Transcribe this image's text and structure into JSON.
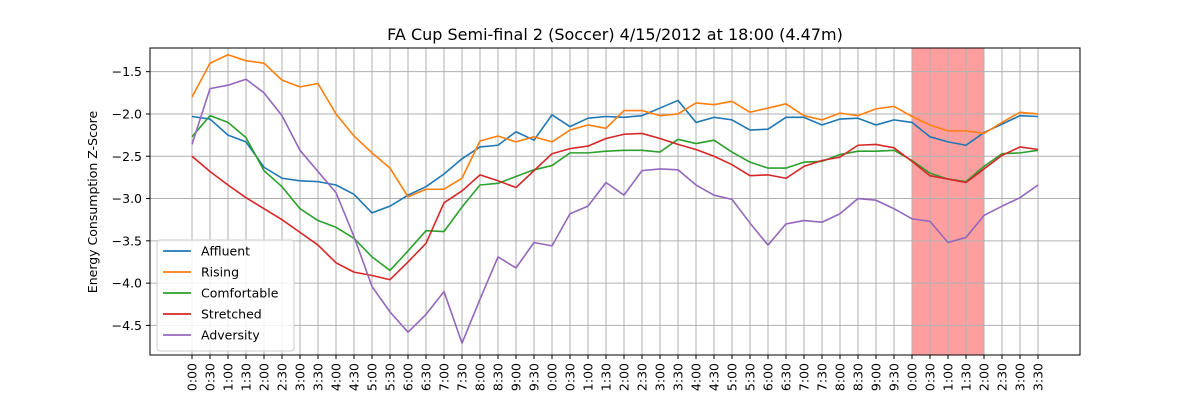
{
  "chart_data": {
    "type": "line",
    "title": "FA Cup Semi-final 2 (Soccer) 4/15/2012 at 18:00 (4.47m)",
    "xlabel": "",
    "ylabel": "Energy Consumption Z-Score",
    "ylim": [
      -4.85,
      -1.22
    ],
    "yticks": [
      -1.5,
      -2.0,
      -2.5,
      -3.0,
      -3.5,
      -4.0,
      -4.5
    ],
    "ytick_labels": [
      "−1.5",
      "−2.0",
      "−2.5",
      "−3.0",
      "−3.5",
      "−4.0",
      "−4.5"
    ],
    "grid": true,
    "legend_placement": "lower-left",
    "highlight": {
      "from_index": 40,
      "to_index": 44,
      "color": "#ff9e9e"
    },
    "x": [
      "0:00",
      "0:30",
      "1:00",
      "1:30",
      "2:00",
      "2:30",
      "3:00",
      "3:30",
      "4:00",
      "4:30",
      "5:00",
      "5:30",
      "6:00",
      "6:30",
      "7:00",
      "7:30",
      "8:00",
      "8:30",
      "9:00",
      "9:30",
      "0:00",
      "0:30",
      "1:00",
      "1:30",
      "2:00",
      "2:30",
      "3:00",
      "3:30",
      "4:00",
      "4:30",
      "5:00",
      "5:30",
      "6:00",
      "6:30",
      "7:00",
      "7:30",
      "8:00",
      "8:30",
      "9:00",
      "9:30",
      "0:00",
      "0:30",
      "1:00",
      "1:30",
      "2:00",
      "2:30",
      "3:00",
      "3:30"
    ],
    "series": [
      {
        "name": "Affluent",
        "color": "#1f77b4",
        "values": [
          -2.03,
          -2.06,
          -2.25,
          -2.33,
          -2.63,
          -2.76,
          -2.79,
          -2.8,
          -2.84,
          -2.95,
          -3.17,
          -3.09,
          -2.96,
          -2.86,
          -2.71,
          -2.53,
          -2.39,
          -2.37,
          -2.21,
          -2.31,
          -2.01,
          -2.15,
          -2.05,
          -2.03,
          -2.04,
          -2.02,
          -1.93,
          -1.84,
          -2.1,
          -2.04,
          -2.07,
          -2.19,
          -2.18,
          -2.04,
          -2.04,
          -2.13,
          -2.06,
          -2.05,
          -2.13,
          -2.07,
          -2.1,
          -2.27,
          -2.33,
          -2.37,
          -2.22,
          -2.12,
          -2.02,
          -2.03
        ]
      },
      {
        "name": "Rising",
        "color": "#ff7f0e",
        "values": [
          -1.8,
          -1.4,
          -1.3,
          -1.37,
          -1.4,
          -1.6,
          -1.68,
          -1.64,
          -2.0,
          -2.26,
          -2.46,
          -2.64,
          -2.98,
          -2.89,
          -2.89,
          -2.76,
          -2.32,
          -2.26,
          -2.33,
          -2.27,
          -2.33,
          -2.19,
          -2.13,
          -2.17,
          -1.96,
          -1.96,
          -2.02,
          -2.0,
          -1.87,
          -1.89,
          -1.85,
          -1.98,
          -1.93,
          -1.88,
          -2.02,
          -2.07,
          -1.99,
          -2.02,
          -1.94,
          -1.91,
          -2.03,
          -2.13,
          -2.2,
          -2.2,
          -2.23,
          -2.1,
          -1.98,
          -2.0
        ]
      },
      {
        "name": "Comfortable",
        "color": "#2ca02c",
        "values": [
          -2.27,
          -2.02,
          -2.1,
          -2.28,
          -2.67,
          -2.86,
          -3.12,
          -3.26,
          -3.34,
          -3.47,
          -3.69,
          -3.85,
          -3.62,
          -3.38,
          -3.39,
          -3.1,
          -2.84,
          -2.82,
          -2.74,
          -2.66,
          -2.61,
          -2.46,
          -2.46,
          -2.44,
          -2.43,
          -2.43,
          -2.45,
          -2.3,
          -2.35,
          -2.31,
          -2.45,
          -2.57,
          -2.64,
          -2.64,
          -2.57,
          -2.56,
          -2.48,
          -2.44,
          -2.44,
          -2.43,
          -2.55,
          -2.7,
          -2.77,
          -2.8,
          -2.62,
          -2.47,
          -2.46,
          -2.43
        ]
      },
      {
        "name": "Stretched",
        "color": "#d62728",
        "values": [
          -2.5,
          -2.68,
          -2.84,
          -2.99,
          -3.12,
          -3.25,
          -3.4,
          -3.55,
          -3.76,
          -3.87,
          -3.91,
          -3.96,
          -3.75,
          -3.53,
          -3.05,
          -2.91,
          -2.72,
          -2.79,
          -2.87,
          -2.67,
          -2.47,
          -2.41,
          -2.38,
          -2.29,
          -2.24,
          -2.23,
          -2.29,
          -2.36,
          -2.42,
          -2.5,
          -2.6,
          -2.73,
          -2.72,
          -2.76,
          -2.62,
          -2.55,
          -2.51,
          -2.37,
          -2.36,
          -2.4,
          -2.56,
          -2.73,
          -2.77,
          -2.81,
          -2.65,
          -2.49,
          -2.39,
          -2.42
        ]
      },
      {
        "name": "Adversity",
        "color": "#9467bd",
        "values": [
          -2.36,
          -1.7,
          -1.66,
          -1.59,
          -1.75,
          -2.02,
          -2.43,
          -2.68,
          -2.93,
          -3.45,
          -4.04,
          -4.34,
          -4.58,
          -4.37,
          -4.1,
          -4.71,
          -4.19,
          -3.69,
          -3.82,
          -3.52,
          -3.56,
          -3.18,
          -3.09,
          -2.81,
          -2.96,
          -2.67,
          -2.65,
          -2.66,
          -2.84,
          -2.96,
          -3.01,
          -3.29,
          -3.55,
          -3.3,
          -3.26,
          -3.28,
          -3.18,
          -3.0,
          -3.02,
          -3.12,
          -3.24,
          -3.27,
          -3.52,
          -3.46,
          -3.2,
          -3.09,
          -2.99,
          -2.84
        ]
      }
    ]
  }
}
